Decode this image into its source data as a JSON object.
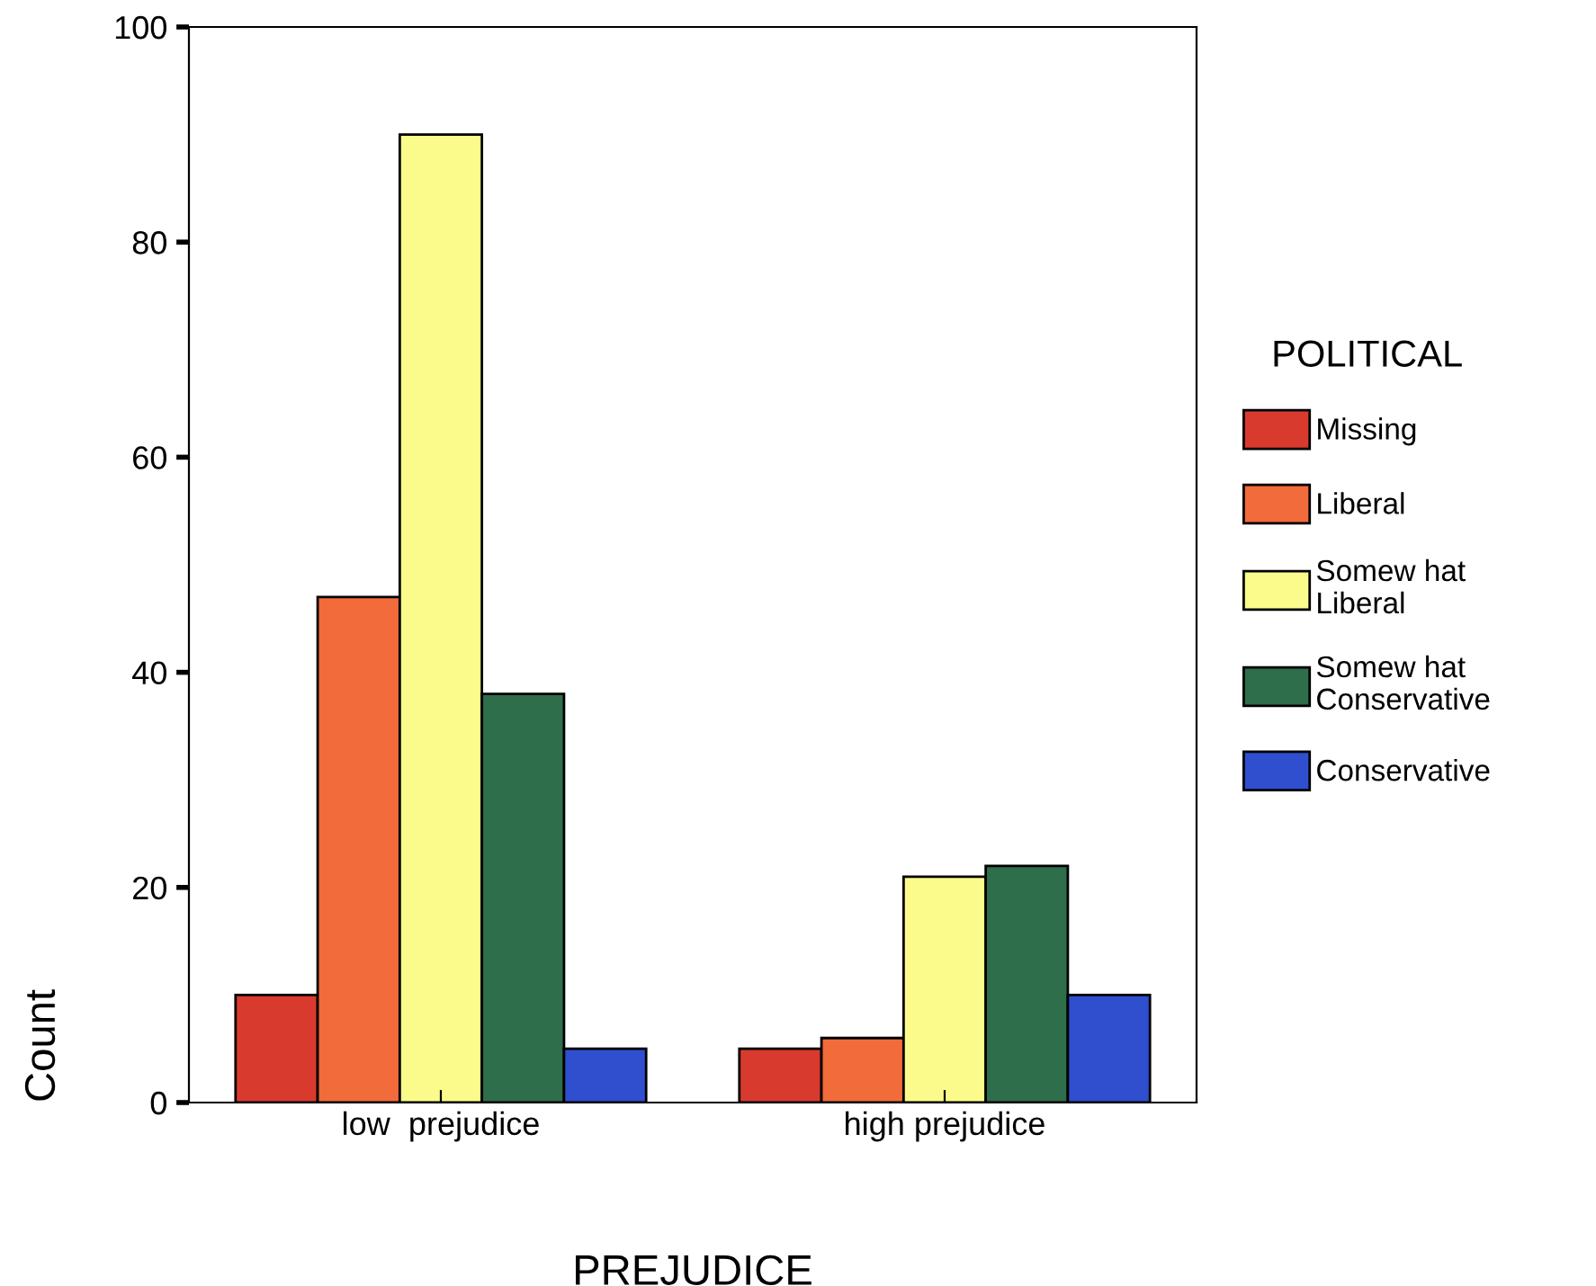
{
  "chart_data": {
    "type": "bar",
    "xlabel": "PREJUDICE",
    "ylabel": "Count",
    "legend_title": "POLITICAL",
    "categories": [
      "low  prejudice",
      "high prejudice"
    ],
    "series": [
      {
        "name": "Missing",
        "color": "#d93a2e",
        "values": [
          10,
          5
        ]
      },
      {
        "name": "Liberal",
        "color": "#f26b3a",
        "values": [
          47,
          6
        ]
      },
      {
        "name": "Somew hat Liberal",
        "color": "#fbfb8c",
        "values": [
          90,
          21
        ]
      },
      {
        "name": "Somew hat Conservative",
        "color": "#2e6e4a",
        "values": [
          38,
          22
        ]
      },
      {
        "name": "Conservative",
        "color": "#2f4fcf",
        "values": [
          5,
          10
        ]
      }
    ],
    "ylim": [
      0,
      100
    ],
    "yticks": [
      0,
      20,
      40,
      60,
      80,
      100
    ],
    "grid": false,
    "legend": "right"
  }
}
